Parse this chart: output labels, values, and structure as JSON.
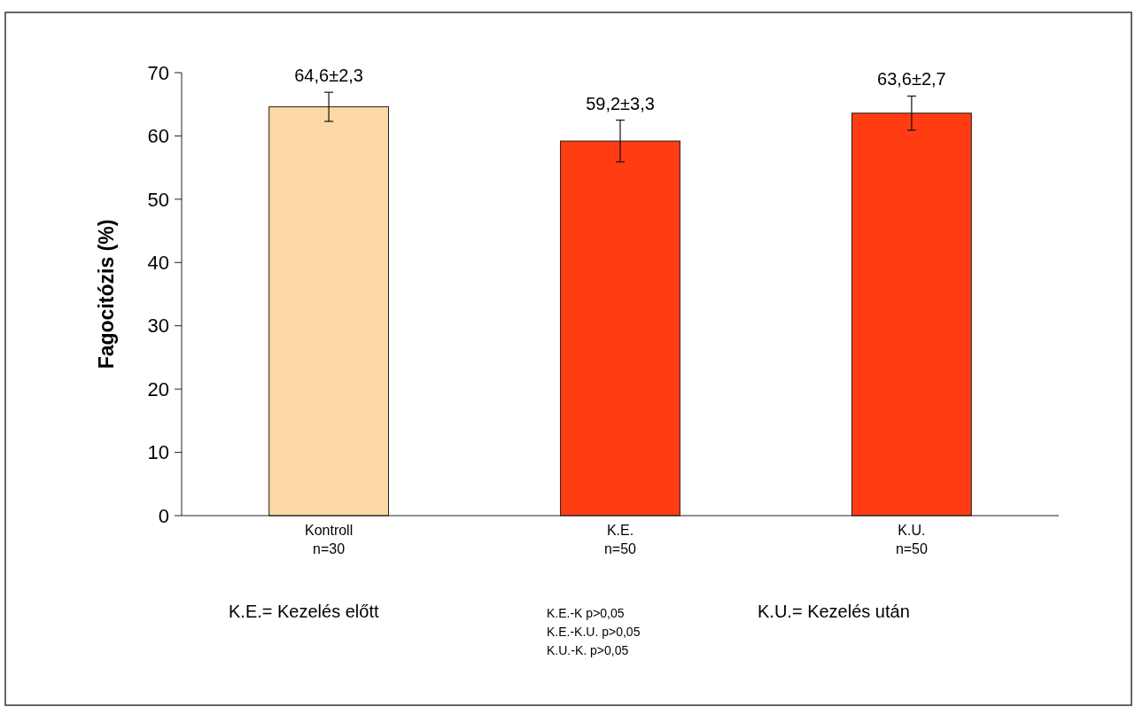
{
  "chart_data": {
    "type": "bar",
    "ylabel": "Fagocitózis (%)",
    "categories": [
      "Kontroll\nn=30",
      "K.E.\nn=50",
      "K.U.\nn=50"
    ],
    "values": [
      64.6,
      59.2,
      63.6
    ],
    "errors": [
      2.3,
      3.3,
      2.7
    ],
    "value_labels": [
      "64,6±2,3",
      "59,2±3,3",
      "63,6±2,7"
    ],
    "colors": [
      "#fcd9a4",
      "#ff3c12",
      "#ff3c12"
    ],
    "ylim": [
      0,
      70
    ],
    "yticks": [
      0,
      10,
      20,
      30,
      40,
      50,
      60,
      70
    ],
    "grid": false,
    "annotations": [
      "K.E.= Kezelés előtt",
      "K.E.-K p>0,05",
      "K.E.-K.U. p>0,05",
      "K.U.-K. p>0,05",
      "K.U.= Kezelés után"
    ]
  }
}
